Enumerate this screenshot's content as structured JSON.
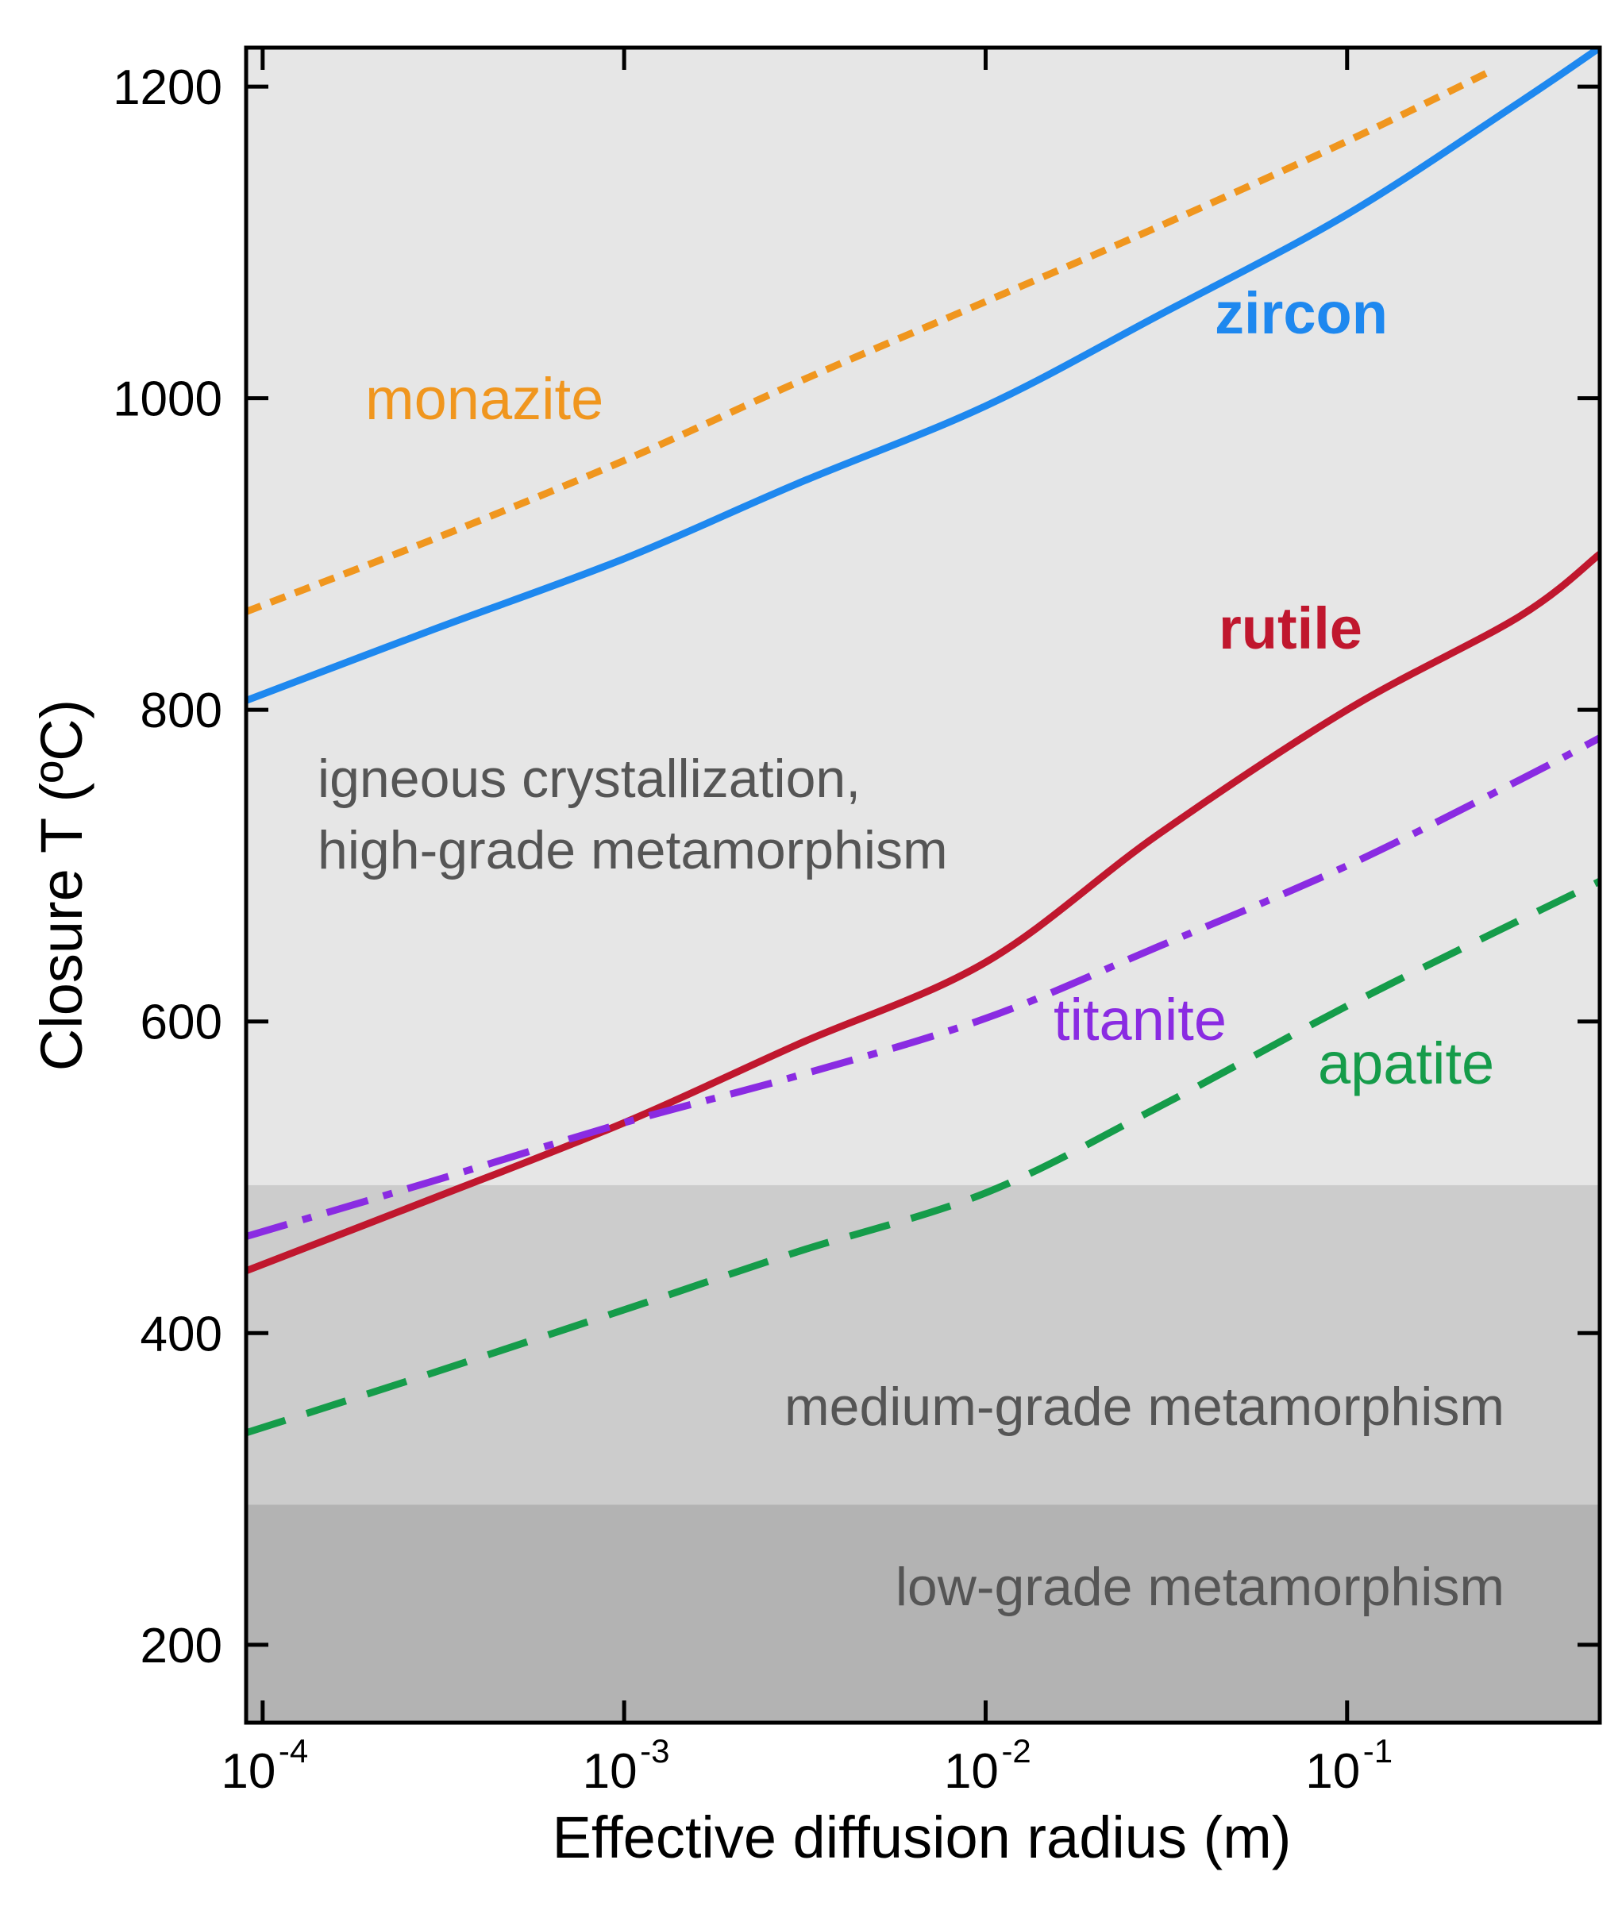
{
  "chart_data": {
    "type": "line",
    "xscale": "log",
    "xlabel": "Effective diffusion radius (m)",
    "ylabel": "Closure T (ºC)",
    "xlim": [
      9e-05,
      0.5
    ],
    "ylim": [
      150,
      1225
    ],
    "x_ticks": [
      {
        "value": 0.0001,
        "base": "10",
        "exp": "-4"
      },
      {
        "value": 0.001,
        "base": "10",
        "exp": "-3"
      },
      {
        "value": 0.01,
        "base": "10",
        "exp": "-2"
      },
      {
        "value": 0.1,
        "base": "10",
        "exp": "-1"
      }
    ],
    "y_ticks": [
      {
        "value": 200,
        "label": "200"
      },
      {
        "value": 400,
        "label": "400"
      },
      {
        "value": 600,
        "label": "600"
      },
      {
        "value": 800,
        "label": "800"
      },
      {
        "value": 1000,
        "label": "1000"
      },
      {
        "value": 1200,
        "label": "1200"
      }
    ],
    "zones": [
      {
        "name": "igneous",
        "lines": [
          "igneous crystallization,",
          "high-grade metamorphism"
        ],
        "y_from": 495,
        "y_to": 1225,
        "color": "#e6e6e6"
      },
      {
        "name": "medium",
        "lines": [
          "medium-grade metamorphism"
        ],
        "y_from": 290,
        "y_to": 495,
        "color": "#cccccc"
      },
      {
        "name": "low",
        "lines": [
          "low-grade metamorphism"
        ],
        "y_from": 150,
        "y_to": 290,
        "color": "#b3b3b3"
      }
    ],
    "series": [
      {
        "name": "monazite",
        "color": "#f0961e",
        "dash": "dotted",
        "bold": false,
        "x": [
          9e-05,
          0.0003,
          0.001,
          0.003,
          0.01,
          0.03,
          0.1,
          0.25
        ],
        "y": [
          863,
          910,
          960,
          1010,
          1062,
          1110,
          1165,
          1210
        ]
      },
      {
        "name": "zircon",
        "color": "#1e88ef",
        "dash": "solid",
        "bold": true,
        "x": [
          9e-05,
          0.0003,
          0.001,
          0.003,
          0.01,
          0.03,
          0.1,
          0.3,
          0.5
        ],
        "y": [
          806,
          852,
          897,
          945,
          995,
          1053,
          1118,
          1190,
          1225
        ]
      },
      {
        "name": "rutile",
        "color": "#c0172e",
        "dash": "solid",
        "bold": true,
        "x": [
          9e-05,
          0.0003,
          0.001,
          0.003,
          0.01,
          0.03,
          0.1,
          0.3,
          0.5
        ],
        "y": [
          440,
          487,
          535,
          585,
          638,
          720,
          800,
          860,
          900
        ]
      },
      {
        "name": "titanite",
        "color": "#8a2be2",
        "dash": "dashdot",
        "bold": false,
        "x": [
          9e-05,
          0.0003,
          0.001,
          0.003,
          0.01,
          0.03,
          0.1,
          0.3,
          0.5
        ],
        "y": [
          462,
          498,
          535,
          565,
          602,
          648,
          700,
          755,
          782
        ]
      },
      {
        "name": "apatite",
        "color": "#159c4a",
        "dash": "dashed",
        "bold": false,
        "x": [
          9e-05,
          0.0003,
          0.001,
          0.003,
          0.01,
          0.03,
          0.1,
          0.3,
          0.5
        ],
        "y": [
          336,
          375,
          415,
          452,
          490,
          545,
          610,
          665,
          690
        ]
      }
    ]
  }
}
